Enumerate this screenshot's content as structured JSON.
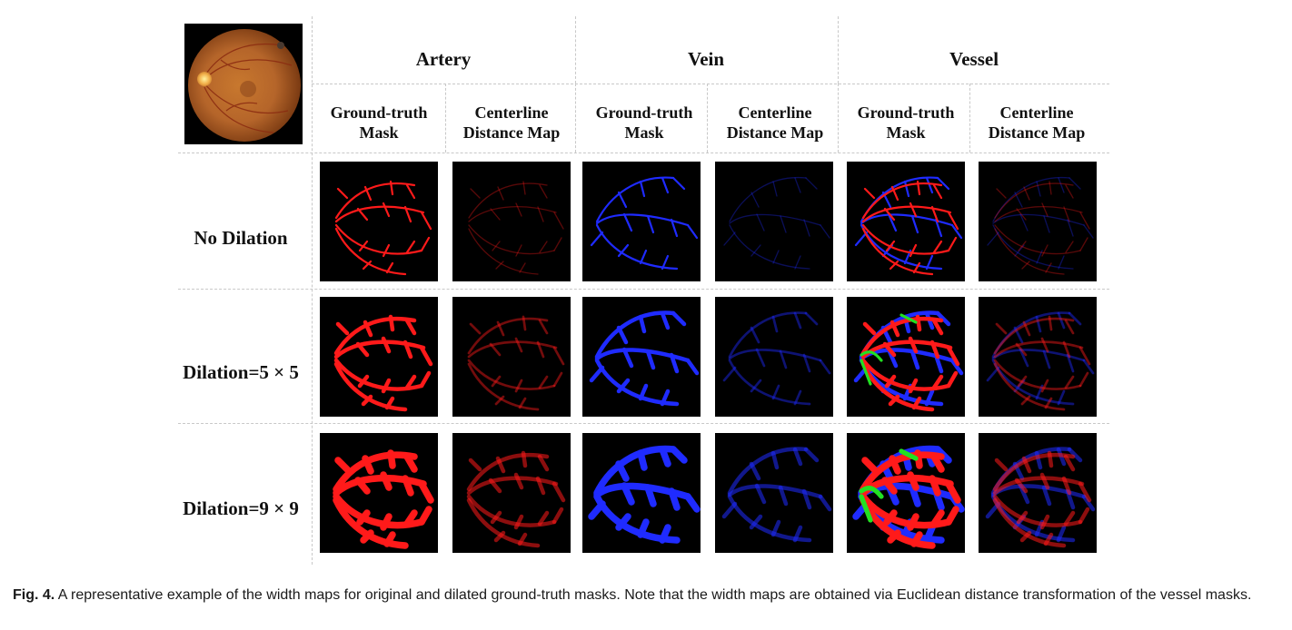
{
  "figure": {
    "groups": [
      {
        "label": "Artery"
      },
      {
        "label": "Vein"
      },
      {
        "label": "Vessel"
      }
    ],
    "columns": [
      {
        "line1": "Ground-truth",
        "line2": "Mask"
      },
      {
        "line1": "Centerline",
        "line2": "Distance Map"
      },
      {
        "line1": "Ground-truth",
        "line2": "Mask"
      },
      {
        "line1": "Centerline",
        "line2": "Distance Map"
      },
      {
        "line1": "Ground-truth",
        "line2": "Mask"
      },
      {
        "line1": "Centerline",
        "line2": "Distance Map"
      }
    ],
    "rows": [
      {
        "label": "No Dilation"
      },
      {
        "label": "Dilation=5 × 5"
      },
      {
        "label": "Dilation=9 × 9"
      }
    ],
    "colors": {
      "artery": "#ff1a1a",
      "vein": "#1f2bff",
      "overlap": "#22e022",
      "background": "#000000",
      "fundus": "#b8662a"
    }
  },
  "caption": {
    "label": "Fig. 4.",
    "text": "A representative example of the width maps for original and dilated ground-truth masks. Note that the width maps are obtained via Euclidean distance transformation of the vessel masks."
  }
}
